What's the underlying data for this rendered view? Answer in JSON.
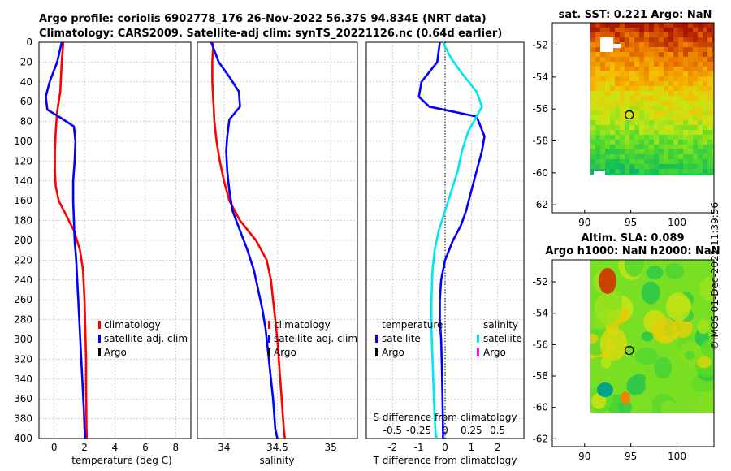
{
  "title_line1": "Argo profile: coriolis 6902778_176 26-Nov-2022 56.37S 94.834E (NRT data)",
  "title_line2": "Climatology: CARS2009. Satellite-adj clim: synTS_20221126.nc (0.64d earlier)",
  "credit": "©IMOS 01-Dec-2022 11:39:56",
  "colors": {
    "climatology": "#ff0000",
    "satellite": "#0000ff",
    "argo": "#000000",
    "sal_satellite": "#00e5ee",
    "sal_argo": "#ff00ff"
  },
  "chart_data": [
    {
      "type": "line",
      "name": "temperature-profile",
      "xlabel": "temperature (deg C)",
      "xlim": [
        -1,
        9
      ],
      "ylim": [
        400,
        0
      ],
      "xticks": [
        "0",
        "2",
        "4",
        "6",
        "8"
      ],
      "yticks": [
        "0",
        "20",
        "40",
        "60",
        "80",
        "100",
        "120",
        "140",
        "160",
        "180",
        "200",
        "220",
        "240",
        "260",
        "280",
        "300",
        "320",
        "340",
        "360",
        "380",
        "400"
      ],
      "legend": [
        "climatology",
        "satellite-adj. clim",
        "Argo"
      ],
      "series": [
        {
          "name": "climatology",
          "x": [
            0.6,
            0.5,
            0.4,
            0.2,
            0.1,
            0.05,
            0.05,
            0.1,
            0.3,
            0.8,
            1.3,
            1.7,
            1.9,
            2.0,
            2.05,
            2.1,
            2.1,
            2.12,
            2.13,
            2.15
          ],
          "depth": [
            0,
            20,
            50,
            70,
            90,
            110,
            130,
            145,
            160,
            175,
            190,
            210,
            230,
            260,
            290,
            320,
            350,
            370,
            390,
            400
          ]
        },
        {
          "name": "satellite-adj. clim",
          "x": [
            0.5,
            0.2,
            -0.3,
            -0.55,
            -0.45,
            0.3,
            1.3,
            1.4,
            1.35,
            1.25,
            1.25,
            1.3,
            1.35,
            1.45,
            1.55,
            1.65,
            1.75,
            1.85,
            1.95,
            2.0,
            2.05
          ],
          "depth": [
            0,
            20,
            40,
            55,
            68,
            75,
            85,
            100,
            120,
            140,
            160,
            180,
            200,
            220,
            250,
            280,
            310,
            340,
            370,
            390,
            400
          ]
        }
      ]
    },
    {
      "type": "line",
      "name": "salinity-profile",
      "xlabel": "salinity",
      "xlim": [
        33.75,
        35.25
      ],
      "ylim": [
        400,
        0
      ],
      "xticks": [
        "34",
        "34.5",
        "35"
      ],
      "legend": [
        "climatology",
        "satellite-adj. clim",
        "Argo"
      ],
      "series": [
        {
          "name": "climatology",
          "x": [
            33.9,
            33.89,
            33.89,
            33.9,
            33.91,
            33.93,
            33.96,
            34.0,
            34.05,
            34.15,
            34.3,
            34.4,
            34.44,
            34.46,
            34.48,
            34.5,
            34.52,
            34.54,
            34.56,
            34.57
          ],
          "depth": [
            0,
            20,
            40,
            60,
            80,
            100,
            120,
            140,
            160,
            180,
            200,
            220,
            240,
            260,
            280,
            300,
            330,
            360,
            390,
            400
          ]
        },
        {
          "name": "satellite-adj. clim",
          "x": [
            33.88,
            33.95,
            34.05,
            34.14,
            34.15,
            34.05,
            34.03,
            34.02,
            34.03,
            34.05,
            34.08,
            34.15,
            34.22,
            34.28,
            34.32,
            34.36,
            34.39,
            34.42,
            34.46,
            34.48,
            34.5
          ],
          "depth": [
            0,
            20,
            35,
            50,
            65,
            78,
            95,
            110,
            130,
            150,
            170,
            190,
            210,
            230,
            250,
            270,
            290,
            320,
            360,
            390,
            400
          ]
        }
      ]
    },
    {
      "type": "line",
      "name": "difference-profile",
      "xlabel": "T difference from climatology",
      "xlabel_top": "S difference from climatology",
      "xlim": [
        -3,
        3
      ],
      "ylim": [
        400,
        0
      ],
      "xticks": [
        "-2",
        "-1",
        "0",
        "1",
        "2"
      ],
      "xticks_top": [
        "-0.5",
        "-0.25",
        "0",
        "0.25",
        "0.5"
      ],
      "legend_temperature": [
        "temperature",
        "satellite",
        "Argo"
      ],
      "legend_salinity": [
        "salinity",
        "satellite",
        "Argo"
      ],
      "series": [
        {
          "name": "temperature satellite",
          "x": [
            -0.2,
            -0.3,
            -0.9,
            -1.0,
            -0.6,
            1.2,
            1.5,
            1.4,
            1.2,
            1.0,
            0.8,
            0.6,
            0.3,
            0.0,
            -0.15,
            -0.2,
            -0.2,
            -0.15,
            -0.12,
            -0.1,
            -0.08,
            -0.08
          ],
          "depth": [
            0,
            20,
            40,
            55,
            65,
            75,
            95,
            110,
            130,
            150,
            170,
            185,
            200,
            220,
            240,
            260,
            280,
            300,
            330,
            360,
            390,
            400
          ]
        },
        {
          "name": "salinity satellite",
          "x": [
            -0.02,
            0.05,
            0.15,
            0.3,
            0.35,
            0.3,
            0.22,
            0.16,
            0.12,
            0.06,
            0.0,
            -0.06,
            -0.1,
            -0.12,
            -0.13,
            -0.13,
            -0.12,
            -0.11,
            -0.1,
            -0.09,
            -0.08
          ],
          "depth": [
            0,
            15,
            30,
            50,
            65,
            75,
            90,
            110,
            130,
            150,
            170,
            190,
            210,
            230,
            260,
            290,
            320,
            350,
            380,
            395,
            400
          ]
        }
      ]
    },
    {
      "type": "heatmap",
      "name": "sst-map",
      "title": "sat. SST: 0.221  Argo: NaN",
      "xticks": [
        "90",
        "95",
        "100"
      ],
      "yticks": [
        "-52",
        "-54",
        "-56",
        "-58",
        "-60",
        "-62"
      ],
      "xlim": [
        86.5,
        104
      ],
      "ylim": [
        -62.5,
        -50.6
      ],
      "marker_lon": 94.834,
      "marker_lat": -56.37
    },
    {
      "type": "heatmap",
      "name": "sla-map",
      "title_line1": "Altim. SLA: 0.089",
      "title_line2": "Argo h1000: NaN h2000: NaN",
      "xticks": [
        "90",
        "95",
        "100"
      ],
      "yticks": [
        "-52",
        "-54",
        "-56",
        "-58",
        "-60",
        "-62"
      ],
      "xlim": [
        86.5,
        104
      ],
      "ylim": [
        -62.5,
        -50.6
      ],
      "marker_lon": 94.834,
      "marker_lat": -56.37
    }
  ]
}
